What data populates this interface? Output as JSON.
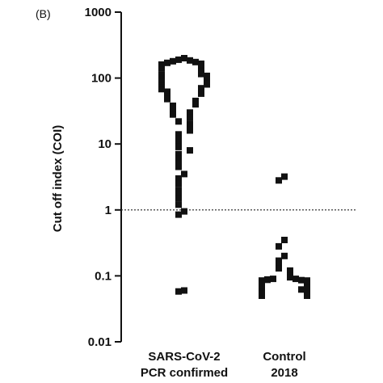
{
  "panel_label": "(B)",
  "chart_data": {
    "type": "scatter",
    "title": "",
    "xlabel": "",
    "ylabel": "Cut off index (COI)",
    "yscale": "log",
    "ylim": [
      0.01,
      1000
    ],
    "yticks": [
      "0.01",
      "0.1",
      "1",
      "10",
      "100",
      "1000"
    ],
    "categories": [
      [
        "SARS-CoV-2",
        "PCR confirmed"
      ],
      [
        "Control",
        "2018"
      ]
    ],
    "reference_line": {
      "value": 1,
      "style": "dotted"
    },
    "grid": false,
    "legend": "none",
    "marker_color": "#111111",
    "series": [
      {
        "category_index": 0,
        "values": [
          200,
          190,
          185,
          180,
          175,
          170,
          165,
          160,
          155,
          150,
          145,
          140,
          135,
          130,
          125,
          120,
          118,
          115,
          112,
          110,
          108,
          105,
          102,
          100,
          98,
          95,
          92,
          90,
          88,
          85,
          82,
          80,
          78,
          75,
          72,
          70,
          68,
          65,
          62,
          60,
          58,
          55,
          52,
          50,
          48,
          45,
          42,
          40,
          38,
          35,
          32,
          30,
          28,
          25,
          22,
          20,
          18,
          16,
          14,
          12,
          10,
          9,
          8,
          7,
          6,
          5,
          4.5,
          3.5,
          3,
          2.5,
          2,
          1.8,
          1.5,
          1.2,
          0.95,
          0.85,
          0.06,
          0.058
        ]
      },
      {
        "category_index": 1,
        "values": [
          3.2,
          2.8,
          0.35,
          0.28,
          0.2,
          0.17,
          0.15,
          0.13,
          0.12,
          0.11,
          0.1,
          0.095,
          0.09,
          0.09,
          0.088,
          0.087,
          0.086,
          0.085,
          0.085,
          0.084,
          0.083,
          0.082,
          0.08,
          0.08,
          0.078,
          0.075,
          0.072,
          0.07,
          0.068,
          0.066,
          0.065,
          0.062,
          0.06,
          0.058,
          0.056,
          0.055,
          0.054,
          0.053,
          0.052,
          0.051,
          0.05,
          0.05
        ]
      }
    ]
  }
}
